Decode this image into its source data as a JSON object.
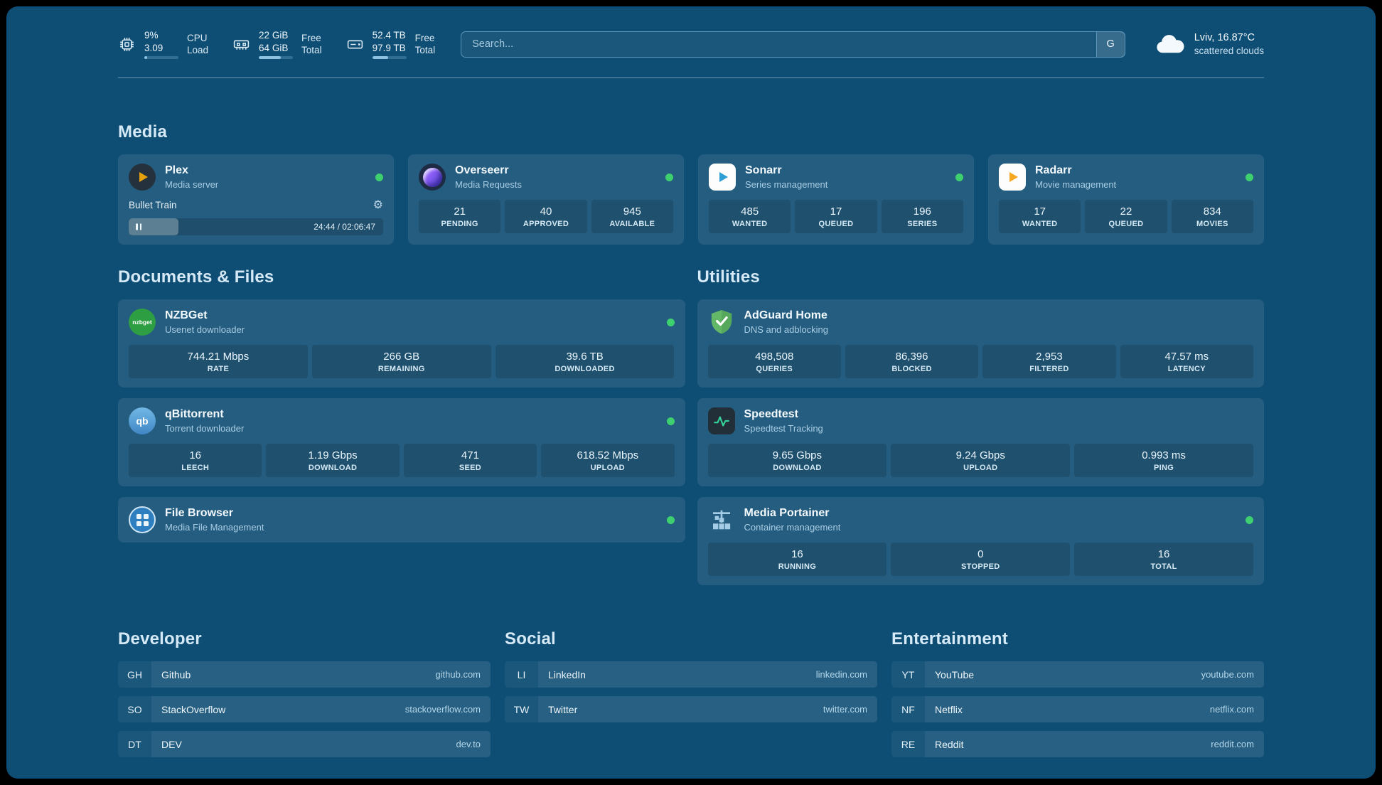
{
  "colors": {
    "bg": "#0f4e74",
    "status_green": "#3ed06f",
    "plex_orange": "#e5a00d",
    "sonarr_blue": "#2f9ed4",
    "radarr_orange": "#f5a623",
    "accent_bar": "#8fc2e0"
  },
  "header": {
    "cpu": {
      "percent": "9%",
      "load": "3.09",
      "label_top": "CPU",
      "label_bottom": "Load",
      "progress": 9
    },
    "memory": {
      "free": "22 GiB",
      "total": "64 GiB",
      "label_top": "Free",
      "label_bottom": "Total",
      "progress": 65
    },
    "disk": {
      "free": "52.4 TB",
      "total": "97.9 TB",
      "label_top": "Free",
      "label_bottom": "Total",
      "progress": 46
    },
    "search": {
      "placeholder": "Search...",
      "engine": "G"
    },
    "weather": {
      "location": "Lviv, 16.87°C",
      "condition": "scattered clouds"
    }
  },
  "media": {
    "title": "Media",
    "plex": {
      "title": "Plex",
      "subtitle": "Media server",
      "now_playing": "Bullet Train",
      "time": "24:44 / 02:06:47",
      "progress": 19.5
    },
    "overseerr": {
      "title": "Overseerr",
      "subtitle": "Media Requests",
      "stats": [
        {
          "value": "21",
          "label": "PENDING"
        },
        {
          "value": "40",
          "label": "APPROVED"
        },
        {
          "value": "945",
          "label": "AVAILABLE"
        }
      ]
    },
    "sonarr": {
      "title": "Sonarr",
      "subtitle": "Series management",
      "stats": [
        {
          "value": "485",
          "label": "WANTED"
        },
        {
          "value": "17",
          "label": "QUEUED"
        },
        {
          "value": "196",
          "label": "SERIES"
        }
      ]
    },
    "radarr": {
      "title": "Radarr",
      "subtitle": "Movie management",
      "stats": [
        {
          "value": "17",
          "label": "WANTED"
        },
        {
          "value": "22",
          "label": "QUEUED"
        },
        {
          "value": "834",
          "label": "MOVIES"
        }
      ]
    }
  },
  "documents": {
    "title": "Documents & Files",
    "nzbget": {
      "title": "NZBGet",
      "subtitle": "Usenet downloader",
      "icon_text": "nzbget",
      "stats": [
        {
          "value": "744.21 Mbps",
          "label": "RATE"
        },
        {
          "value": "266 GB",
          "label": "REMAINING"
        },
        {
          "value": "39.6 TB",
          "label": "DOWNLOADED"
        }
      ]
    },
    "qbittorrent": {
      "title": "qBittorrent",
      "subtitle": "Torrent downloader",
      "icon_text": "qb",
      "stats": [
        {
          "value": "16",
          "label": "LEECH"
        },
        {
          "value": "1.19 Gbps",
          "label": "DOWNLOAD"
        },
        {
          "value": "471",
          "label": "SEED"
        },
        {
          "value": "618.52 Mbps",
          "label": "UPLOAD"
        }
      ]
    },
    "filebrowser": {
      "title": "File Browser",
      "subtitle": "Media File Management"
    }
  },
  "utilities": {
    "title": "Utilities",
    "adguard": {
      "title": "AdGuard Home",
      "subtitle": "DNS and adblocking",
      "stats": [
        {
          "value": "498,508",
          "label": "QUERIES"
        },
        {
          "value": "86,396",
          "label": "BLOCKED"
        },
        {
          "value": "2,953",
          "label": "FILTERED"
        },
        {
          "value": "47.57 ms",
          "label": "LATENCY"
        }
      ]
    },
    "speedtest": {
      "title": "Speedtest",
      "subtitle": "Speedtest Tracking",
      "stats": [
        {
          "value": "9.65 Gbps",
          "label": "DOWNLOAD"
        },
        {
          "value": "9.24 Gbps",
          "label": "UPLOAD"
        },
        {
          "value": "0.993 ms",
          "label": "PING"
        }
      ]
    },
    "portainer": {
      "title": "Media Portainer",
      "subtitle": "Container management",
      "stats": [
        {
          "value": "16",
          "label": "RUNNING"
        },
        {
          "value": "0",
          "label": "STOPPED"
        },
        {
          "value": "16",
          "label": "TOTAL"
        }
      ]
    }
  },
  "bookmarks": {
    "developer": {
      "title": "Developer",
      "items": [
        {
          "abbr": "GH",
          "name": "Github",
          "url": "github.com"
        },
        {
          "abbr": "SO",
          "name": "StackOverflow",
          "url": "stackoverflow.com"
        },
        {
          "abbr": "DT",
          "name": "DEV",
          "url": "dev.to"
        }
      ]
    },
    "social": {
      "title": "Social",
      "items": [
        {
          "abbr": "LI",
          "name": "LinkedIn",
          "url": "linkedin.com"
        },
        {
          "abbr": "TW",
          "name": "Twitter",
          "url": "twitter.com"
        }
      ]
    },
    "entertainment": {
      "title": "Entertainment",
      "items": [
        {
          "abbr": "YT",
          "name": "YouTube",
          "url": "youtube.com"
        },
        {
          "abbr": "NF",
          "name": "Netflix",
          "url": "netflix.com"
        },
        {
          "abbr": "RE",
          "name": "Reddit",
          "url": "reddit.com"
        }
      ]
    }
  }
}
